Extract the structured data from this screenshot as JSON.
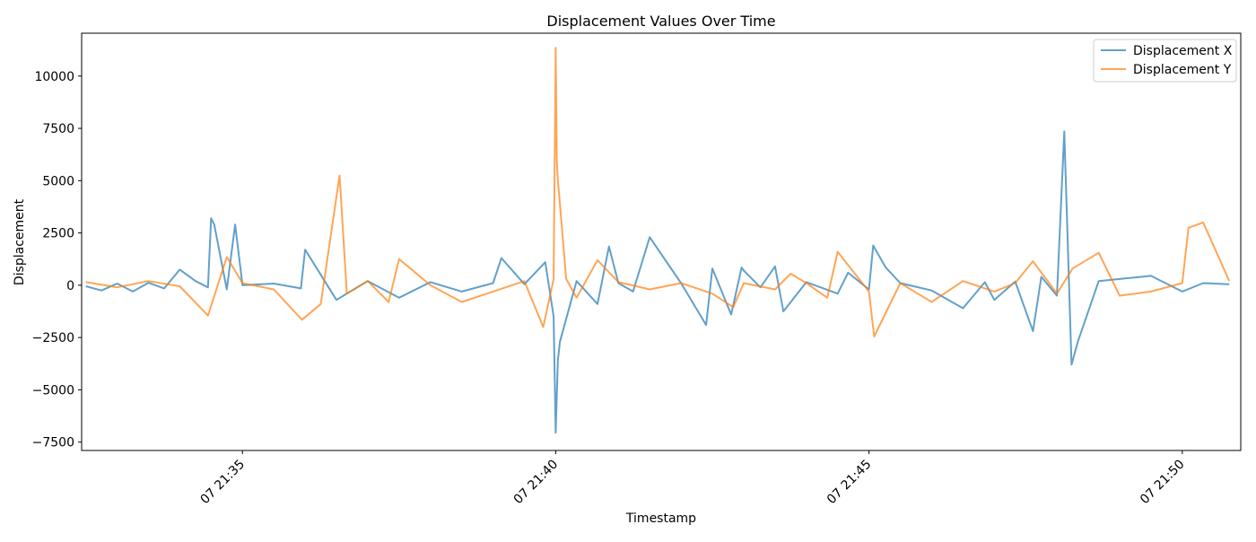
{
  "chart_data": {
    "type": "line",
    "title": "Displacement Values Over Time",
    "xlabel": "Timestamp",
    "ylabel": "Displacement",
    "xlim": [
      "07 21:32:26",
      "07 21:50:56"
    ],
    "ylim": [
      -7900,
      12050
    ],
    "yticks": [
      -7500,
      -5000,
      -2500,
      0,
      2500,
      5000,
      7500,
      10000
    ],
    "ytick_labels": [
      "−7500",
      "−5000",
      "−2500",
      "0",
      "2500",
      "5000",
      "7500",
      "10000"
    ],
    "xticks": [
      "07 21:35:00",
      "07 21:40:00",
      "07 21:45:00",
      "07 21:50:00"
    ],
    "xtick_labels": [
      "07 21:35",
      "07 21:40",
      "07 21:45",
      "07 21:50"
    ],
    "grid": false,
    "legend_position": "top-right",
    "series": [
      {
        "name": "Displacement X",
        "color": "#1f77b4",
        "x": [
          "07 21:32:30",
          "07 21:32:45",
          "07 21:33:00",
          "07 21:33:15",
          "07 21:33:30",
          "07 21:33:45",
          "07 21:34:00",
          "07 21:34:15",
          "07 21:34:27",
          "07 21:34:30",
          "07 21:34:33",
          "07 21:34:45",
          "07 21:34:53",
          "07 21:35:00",
          "07 21:35:30",
          "07 21:35:56",
          "07 21:36:00",
          "07 21:36:30",
          "07 21:37:00",
          "07 21:37:30",
          "07 21:38:00",
          "07 21:38:30",
          "07 21:39:00",
          "07 21:39:08",
          "07 21:39:30",
          "07 21:39:50",
          "07 21:39:58",
          "07 21:40:00",
          "07 21:40:02",
          "07 21:40:04",
          "07 21:40:20",
          "07 21:40:40",
          "07 21:40:51",
          "07 21:41:00",
          "07 21:41:14",
          "07 21:41:30",
          "07 21:42:00",
          "07 21:42:24",
          "07 21:42:30",
          "07 21:42:48",
          "07 21:42:58",
          "07 21:43:00",
          "07 21:43:16",
          "07 21:43:30",
          "07 21:43:38",
          "07 21:44:00",
          "07 21:44:30",
          "07 21:44:40",
          "07 21:45:00",
          "07 21:45:04",
          "07 21:45:16",
          "07 21:45:30",
          "07 21:46:00",
          "07 21:46:30",
          "07 21:46:51",
          "07 21:47:00",
          "07 21:47:20",
          "07 21:47:37",
          "07 21:47:45",
          "07 21:48:00",
          "07 21:48:07",
          "07 21:48:14",
          "07 21:48:20",
          "07 21:48:40",
          "07 21:49:00",
          "07 21:49:30",
          "07 21:50:00",
          "07 21:50:20",
          "07 21:50:45"
        ],
        "values": [
          -50,
          -250,
          80,
          -300,
          120,
          -150,
          750,
          200,
          -100,
          3200,
          2900,
          -200,
          2900,
          0,
          80,
          -150,
          1700,
          -700,
          200,
          -600,
          150,
          -300,
          100,
          1300,
          50,
          1100,
          -1500,
          -7050,
          -3600,
          -2700,
          200,
          -900,
          1850,
          100,
          -300,
          2300,
          100,
          -1900,
          800,
          -1400,
          850,
          700,
          -100,
          900,
          -1250,
          150,
          -400,
          600,
          -200,
          1900,
          850,
          100,
          -250,
          -1100,
          150,
          -700,
          180,
          -2200,
          400,
          -500,
          7350,
          -3800,
          -2700,
          200,
          300,
          450,
          -300,
          100,
          50
        ]
      },
      {
        "name": "Displacement Y",
        "color": "#ff7f0e",
        "x": [
          "07 21:32:30",
          "07 21:33:00",
          "07 21:33:30",
          "07 21:34:00",
          "07 21:34:27",
          "07 21:34:45",
          "07 21:35:00",
          "07 21:35:30",
          "07 21:35:57",
          "07 21:36:15",
          "07 21:36:33",
          "07 21:36:40",
          "07 21:37:00",
          "07 21:37:20",
          "07 21:37:30",
          "07 21:38:00",
          "07 21:38:30",
          "07 21:39:00",
          "07 21:39:30",
          "07 21:39:48",
          "07 21:39:58",
          "07 21:40:00",
          "07 21:40:01",
          "07 21:40:02",
          "07 21:40:03",
          "07 21:40:10",
          "07 21:40:20",
          "07 21:40:40",
          "07 21:41:00",
          "07 21:41:30",
          "07 21:42:00",
          "07 21:42:30",
          "07 21:42:50",
          "07 21:43:00",
          "07 21:43:30",
          "07 21:43:45",
          "07 21:44:00",
          "07 21:44:20",
          "07 21:44:30",
          "07 21:45:00",
          "07 21:45:05",
          "07 21:45:30",
          "07 21:46:00",
          "07 21:46:30",
          "07 21:47:00",
          "07 21:47:20",
          "07 21:47:37",
          "07 21:48:00",
          "07 21:48:15",
          "07 21:48:40",
          "07 21:49:00",
          "07 21:49:30",
          "07 21:50:00",
          "07 21:50:06",
          "07 21:50:20",
          "07 21:50:45"
        ],
        "values": [
          150,
          -100,
          200,
          -50,
          -1450,
          1350,
          100,
          -200,
          -1650,
          -900,
          5250,
          -400,
          200,
          -800,
          1250,
          0,
          -800,
          -300,
          200,
          -2000,
          300,
          11350,
          6000,
          5000,
          4500,
          300,
          -600,
          1200,
          150,
          -200,
          100,
          -400,
          -1050,
          100,
          -200,
          550,
          100,
          -600,
          1600,
          -300,
          -2450,
          100,
          -800,
          200,
          -300,
          100,
          1150,
          -400,
          800,
          1550,
          -500,
          -300,
          100,
          2750,
          3000,
          200
        ]
      }
    ]
  }
}
